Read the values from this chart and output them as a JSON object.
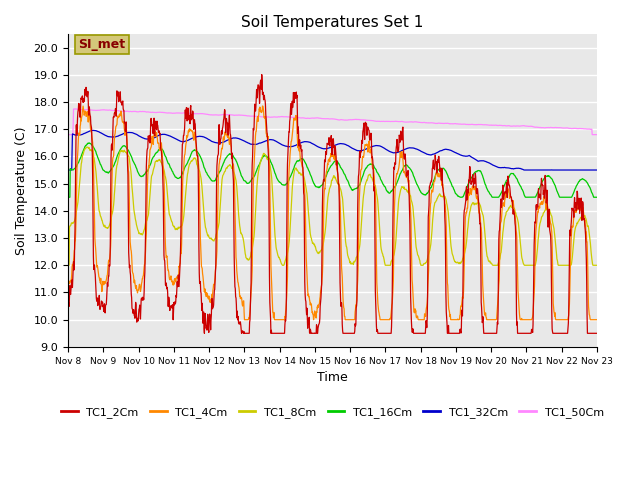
{
  "title": "Soil Temperatures Set 1",
  "xlabel": "Time",
  "ylabel": "Soil Temperature (C)",
  "ylim": [
    9.0,
    20.5
  ],
  "yticks": [
    9.0,
    10.0,
    11.0,
    12.0,
    13.0,
    14.0,
    15.0,
    16.0,
    17.0,
    18.0,
    19.0,
    20.0
  ],
  "plot_bg": "#e8e8e8",
  "grid_color": "white",
  "series_colors": {
    "TC1_2Cm": "#cc0000",
    "TC1_4Cm": "#ff8800",
    "TC1_8Cm": "#cccc00",
    "TC1_16Cm": "#00cc00",
    "TC1_32Cm": "#0000cc",
    "TC1_50Cm": "#ff88ff"
  },
  "annotation_text": "SI_met",
  "annotation_bbox_facecolor": "#d4c87a",
  "annotation_bbox_edgecolor": "#999900",
  "annotation_text_color": "#880000",
  "start_day": 8,
  "n_days": 15,
  "figsize": [
    6.4,
    4.8
  ],
  "dpi": 100
}
